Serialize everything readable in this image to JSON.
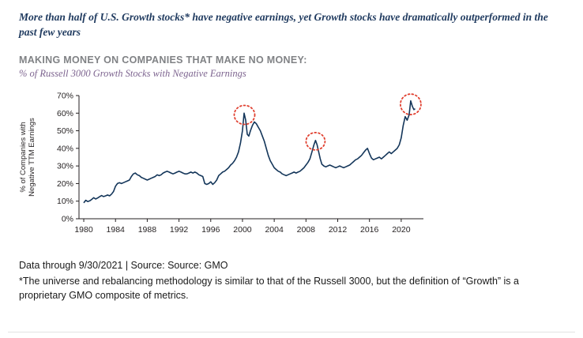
{
  "page": {
    "headline": "More than half of U.S. Growth stocks* have negative earnings, yet Growth stocks have dramatically outperformed in the past few years",
    "title": "MAKING MONEY ON COMPANIES THAT MAKE NO MONEY:",
    "subtitle": "% of Russell 3000 Growth Stocks with Negative Earnings",
    "footnote_source": "Data through 9/30/2021 | Source: Source: GMO",
    "footnote_disclaimer": "*The universe and rebalancing methodology is similar to that of the Russell 3000, but the definition of “Growth” is a proprietary GMO composite of metrics."
  },
  "colors": {
    "headline": "#1f3a5f",
    "title_gray": "#808285",
    "subtitle_purple": "#7e6590",
    "line": "#14365a",
    "annotation_red": "#e04030",
    "axis": "#231f20",
    "tick_text": "#231f20",
    "divider": "#e2e2e2"
  },
  "chart_data": {
    "type": "line",
    "title": "MAKING MONEY ON COMPANIES THAT MAKE NO MONEY:",
    "subtitle": "% of Russell 3000 Growth Stocks with Negative Earnings",
    "ylabel_lines": [
      "% of Companies with",
      "Negative TTM Earnings"
    ],
    "xlabel": "",
    "grid": false,
    "legend": "none",
    "xlim": [
      1979.4,
      2022.8
    ],
    "ylim": [
      0,
      70
    ],
    "x_ticks": [
      1980,
      1984,
      1988,
      1992,
      1996,
      2000,
      2004,
      2008,
      2012,
      2016,
      2020
    ],
    "y_ticks": [
      0,
      10,
      20,
      30,
      40,
      50,
      60,
      70
    ],
    "y_tick_suffix": "%",
    "series": [
      {
        "name": "% of Russell 3000 Growth Stocks with Negative TTM Earnings",
        "points": [
          [
            1980.0,
            9
          ],
          [
            1980.25,
            10.5
          ],
          [
            1980.5,
            9.8
          ],
          [
            1980.75,
            10.2
          ],
          [
            1981.0,
            11
          ],
          [
            1981.25,
            12
          ],
          [
            1981.5,
            11.2
          ],
          [
            1981.75,
            11.8
          ],
          [
            1982.0,
            12.5
          ],
          [
            1982.25,
            13.2
          ],
          [
            1982.5,
            12.6
          ],
          [
            1982.75,
            13.0
          ],
          [
            1983.0,
            13.5
          ],
          [
            1983.25,
            13.0
          ],
          [
            1983.5,
            14.0
          ],
          [
            1983.75,
            15.5
          ],
          [
            1984.0,
            18.5
          ],
          [
            1984.25,
            20.0
          ],
          [
            1984.5,
            20.5
          ],
          [
            1984.75,
            20.0
          ],
          [
            1985.0,
            20.5
          ],
          [
            1985.25,
            21.0
          ],
          [
            1985.5,
            21.5
          ],
          [
            1985.75,
            22.0
          ],
          [
            1986.0,
            24.0
          ],
          [
            1986.25,
            25.5
          ],
          [
            1986.5,
            26.0
          ],
          [
            1986.75,
            25.0
          ],
          [
            1987.0,
            24.5
          ],
          [
            1987.25,
            23.5
          ],
          [
            1987.5,
            23.0
          ],
          [
            1987.75,
            22.5
          ],
          [
            1988.0,
            22.0
          ],
          [
            1988.25,
            22.5
          ],
          [
            1988.5,
            23.0
          ],
          [
            1988.75,
            23.5
          ],
          [
            1989.0,
            24.0
          ],
          [
            1989.25,
            25.0
          ],
          [
            1989.5,
            24.5
          ],
          [
            1989.75,
            25.0
          ],
          [
            1990.0,
            26.0
          ],
          [
            1990.25,
            26.5
          ],
          [
            1990.5,
            27.0
          ],
          [
            1990.75,
            26.5
          ],
          [
            1991.0,
            26.0
          ],
          [
            1991.25,
            25.5
          ],
          [
            1991.5,
            26.0
          ],
          [
            1991.75,
            26.5
          ],
          [
            1992.0,
            27.0
          ],
          [
            1992.25,
            26.5
          ],
          [
            1992.5,
            26.0
          ],
          [
            1992.75,
            25.5
          ],
          [
            1993.0,
            25.5
          ],
          [
            1993.25,
            26.0
          ],
          [
            1993.5,
            26.5
          ],
          [
            1993.75,
            26.0
          ],
          [
            1994.0,
            26.5
          ],
          [
            1994.25,
            26.0
          ],
          [
            1994.5,
            25.0
          ],
          [
            1994.75,
            24.5
          ],
          [
            1995.0,
            24.0
          ],
          [
            1995.25,
            20.0
          ],
          [
            1995.5,
            19.5
          ],
          [
            1995.75,
            20.0
          ],
          [
            1996.0,
            21.0
          ],
          [
            1996.25,
            19.5
          ],
          [
            1996.5,
            20.5
          ],
          [
            1996.75,
            22.0
          ],
          [
            1997.0,
            24.5
          ],
          [
            1997.25,
            25.5
          ],
          [
            1997.5,
            26.5
          ],
          [
            1997.75,
            27.0
          ],
          [
            1998.0,
            28.0
          ],
          [
            1998.25,
            29.0
          ],
          [
            1998.5,
            30.5
          ],
          [
            1998.75,
            31.5
          ],
          [
            1999.0,
            33.0
          ],
          [
            1999.25,
            35.0
          ],
          [
            1999.5,
            38.0
          ],
          [
            1999.75,
            43.0
          ],
          [
            2000.0,
            50.0
          ],
          [
            2000.2,
            60.0
          ],
          [
            2000.4,
            56.0
          ],
          [
            2000.6,
            48.0
          ],
          [
            2000.8,
            47.0
          ],
          [
            2001.0,
            50.0
          ],
          [
            2001.25,
            53.0
          ],
          [
            2001.5,
            55.0
          ],
          [
            2001.75,
            54.0
          ],
          [
            2002.0,
            52.0
          ],
          [
            2002.25,
            50.0
          ],
          [
            2002.5,
            47.0
          ],
          [
            2002.75,
            44.0
          ],
          [
            2003.0,
            40.0
          ],
          [
            2003.25,
            36.0
          ],
          [
            2003.5,
            33.0
          ],
          [
            2003.75,
            31.0
          ],
          [
            2004.0,
            29.0
          ],
          [
            2004.25,
            28.0
          ],
          [
            2004.5,
            27.0
          ],
          [
            2004.75,
            26.5
          ],
          [
            2005.0,
            25.5
          ],
          [
            2005.25,
            25.0
          ],
          [
            2005.5,
            24.5
          ],
          [
            2005.75,
            25.0
          ],
          [
            2006.0,
            25.5
          ],
          [
            2006.25,
            26.0
          ],
          [
            2006.5,
            26.5
          ],
          [
            2006.75,
            26.0
          ],
          [
            2007.0,
            26.5
          ],
          [
            2007.25,
            27.0
          ],
          [
            2007.5,
            28.0
          ],
          [
            2007.75,
            29.0
          ],
          [
            2008.0,
            30.5
          ],
          [
            2008.25,
            32.0
          ],
          [
            2008.5,
            34.0
          ],
          [
            2008.75,
            38.0
          ],
          [
            2009.0,
            42.0
          ],
          [
            2009.2,
            44.5
          ],
          [
            2009.4,
            42.0
          ],
          [
            2009.6,
            38.0
          ],
          [
            2009.8,
            34.0
          ],
          [
            2010.0,
            31.0
          ],
          [
            2010.25,
            30.0
          ],
          [
            2010.5,
            29.5
          ],
          [
            2010.75,
            30.0
          ],
          [
            2011.0,
            30.5
          ],
          [
            2011.25,
            30.0
          ],
          [
            2011.5,
            29.5
          ],
          [
            2011.75,
            29.0
          ],
          [
            2012.0,
            29.5
          ],
          [
            2012.25,
            30.0
          ],
          [
            2012.5,
            29.5
          ],
          [
            2012.75,
            29.0
          ],
          [
            2013.0,
            29.5
          ],
          [
            2013.25,
            30.0
          ],
          [
            2013.5,
            30.5
          ],
          [
            2013.75,
            31.5
          ],
          [
            2014.0,
            32.5
          ],
          [
            2014.25,
            33.5
          ],
          [
            2014.5,
            34.0
          ],
          [
            2014.75,
            35.0
          ],
          [
            2015.0,
            36.0
          ],
          [
            2015.25,
            37.5
          ],
          [
            2015.5,
            39.0
          ],
          [
            2015.75,
            40.0
          ],
          [
            2016.0,
            37.0
          ],
          [
            2016.25,
            34.5
          ],
          [
            2016.5,
            33.5
          ],
          [
            2016.75,
            34.0
          ],
          [
            2017.0,
            34.5
          ],
          [
            2017.25,
            35.0
          ],
          [
            2017.5,
            34.0
          ],
          [
            2017.75,
            35.0
          ],
          [
            2018.0,
            36.0
          ],
          [
            2018.25,
            37.0
          ],
          [
            2018.5,
            38.0
          ],
          [
            2018.75,
            37.0
          ],
          [
            2019.0,
            38.0
          ],
          [
            2019.25,
            39.0
          ],
          [
            2019.5,
            40.0
          ],
          [
            2019.75,
            42.0
          ],
          [
            2020.0,
            46.0
          ],
          [
            2020.25,
            53.0
          ],
          [
            2020.5,
            58.0
          ],
          [
            2020.75,
            56.0
          ],
          [
            2021.0,
            59.0
          ],
          [
            2021.2,
            67.0
          ],
          [
            2021.4,
            64.0
          ],
          [
            2021.6,
            62.0
          ],
          [
            2021.75,
            62.5
          ]
        ]
      }
    ],
    "annotations": [
      {
        "type": "dotted-circle",
        "x": 2000.25,
        "y": 59,
        "rx": 13,
        "ry": 12
      },
      {
        "type": "dotted-circle",
        "x": 2009.2,
        "y": 44,
        "rx": 12,
        "ry": 11
      },
      {
        "type": "dotted-circle",
        "x": 2021.2,
        "y": 65,
        "rx": 13,
        "ry": 13
      }
    ]
  }
}
